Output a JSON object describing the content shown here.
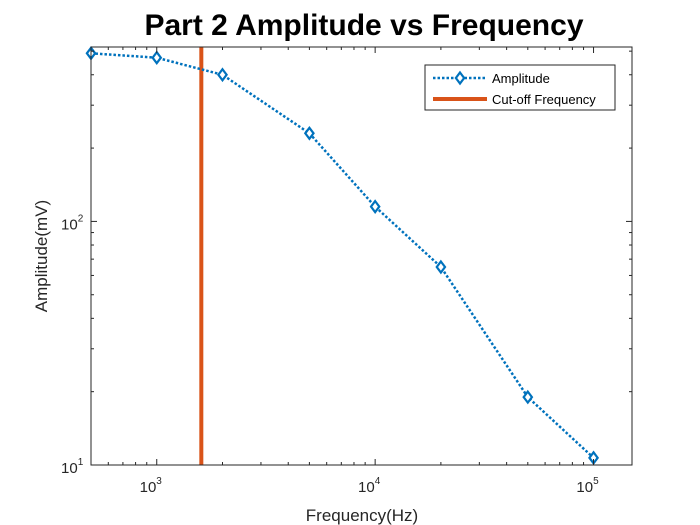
{
  "chart_data": {
    "type": "line",
    "title": "Part 2 Amplitude vs Frequency",
    "xlabel": "Frequency(Hz)",
    "ylabel": "Amplitude(mV)",
    "xscale": "log",
    "yscale": "log",
    "xlim": [
      500,
      150000
    ],
    "ylim": [
      10,
      520
    ],
    "xticks": [
      {
        "value": 1000,
        "base": "10",
        "exp": "3"
      },
      {
        "value": 10000,
        "base": "10",
        "exp": "4"
      },
      {
        "value": 100000,
        "base": "10",
        "exp": "5"
      }
    ],
    "yticks": [
      {
        "value": 10,
        "base": "10",
        "exp": "1"
      },
      {
        "value": 100,
        "base": "10",
        "exp": "2"
      }
    ],
    "series": [
      {
        "name": "Amplitude",
        "color": "#0072BD",
        "style": "dotted",
        "marker": "diamond",
        "x": [
          500,
          1000,
          2000,
          5000,
          10000,
          20000,
          50000,
          100000
        ],
        "y": [
          490,
          470,
          400,
          230,
          115,
          65,
          19,
          10.7
        ]
      },
      {
        "name": "Cut-off Frequency",
        "color": "#D95319",
        "style": "solid",
        "type": "vline",
        "x": 1600
      }
    ],
    "legend_position": "top-right",
    "grid": false,
    "box": true
  }
}
